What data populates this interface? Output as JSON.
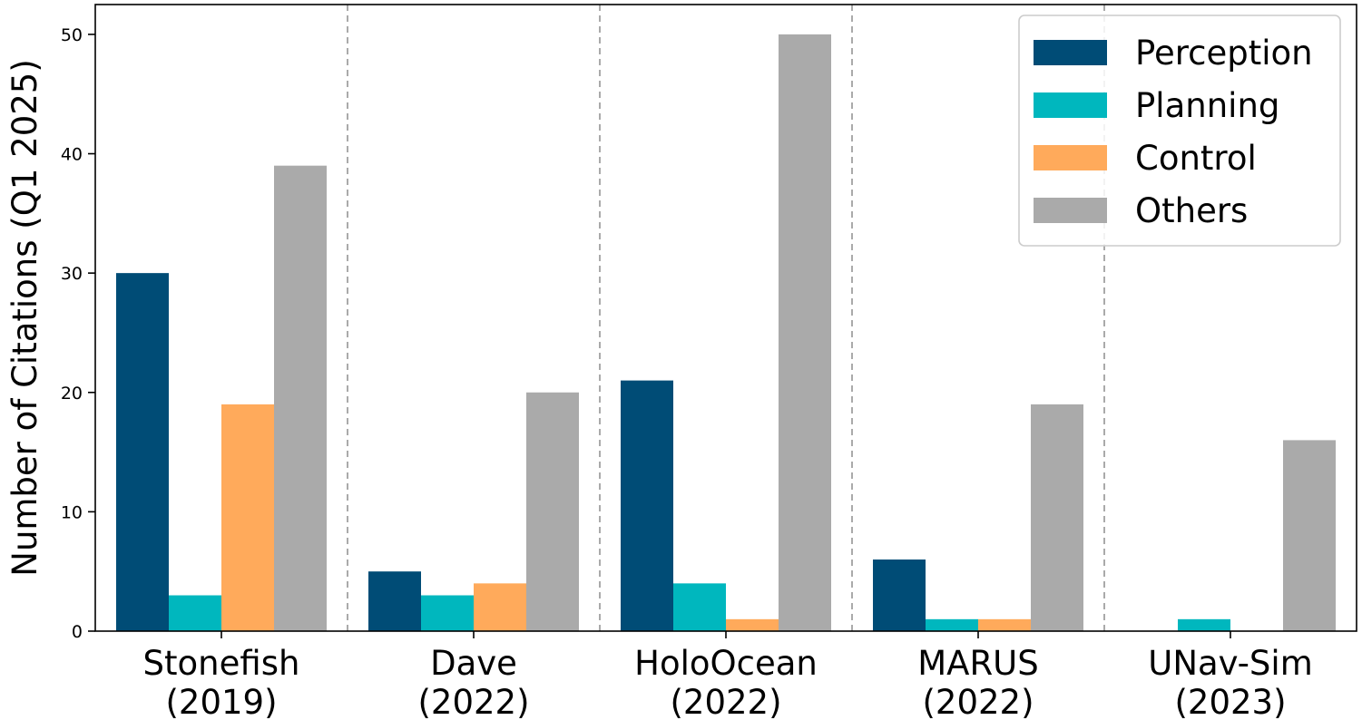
{
  "chart_data": {
    "type": "bar",
    "categories": [
      [
        "Stonefish",
        "(2019)"
      ],
      [
        "Dave",
        "(2022)"
      ],
      [
        "HoloOcean",
        "(2022)"
      ],
      [
        "MARUS",
        "(2022)"
      ],
      [
        "UNav-Sim",
        "(2023)"
      ]
    ],
    "series": [
      {
        "name": "Perception",
        "color": "#004c76",
        "values": [
          30,
          5,
          21,
          6,
          0
        ]
      },
      {
        "name": "Planning",
        "color": "#00b7be",
        "values": [
          3,
          3,
          4,
          1,
          1
        ]
      },
      {
        "name": "Control",
        "color": "#ffaa5b",
        "values": [
          19,
          4,
          1,
          1,
          0
        ]
      },
      {
        "name": "Others",
        "color": "#aaaaaa",
        "values": [
          39,
          20,
          50,
          19,
          16
        ]
      }
    ],
    "title": "",
    "xlabel": "",
    "ylabel": "Number of Citations (Q1 2025)",
    "ylim": [
      0,
      52.5
    ],
    "yticks": [
      0,
      10,
      20,
      30,
      40,
      50
    ],
    "grid": false,
    "group_separators": "dashed-vertical",
    "legend_position": "top-right"
  }
}
